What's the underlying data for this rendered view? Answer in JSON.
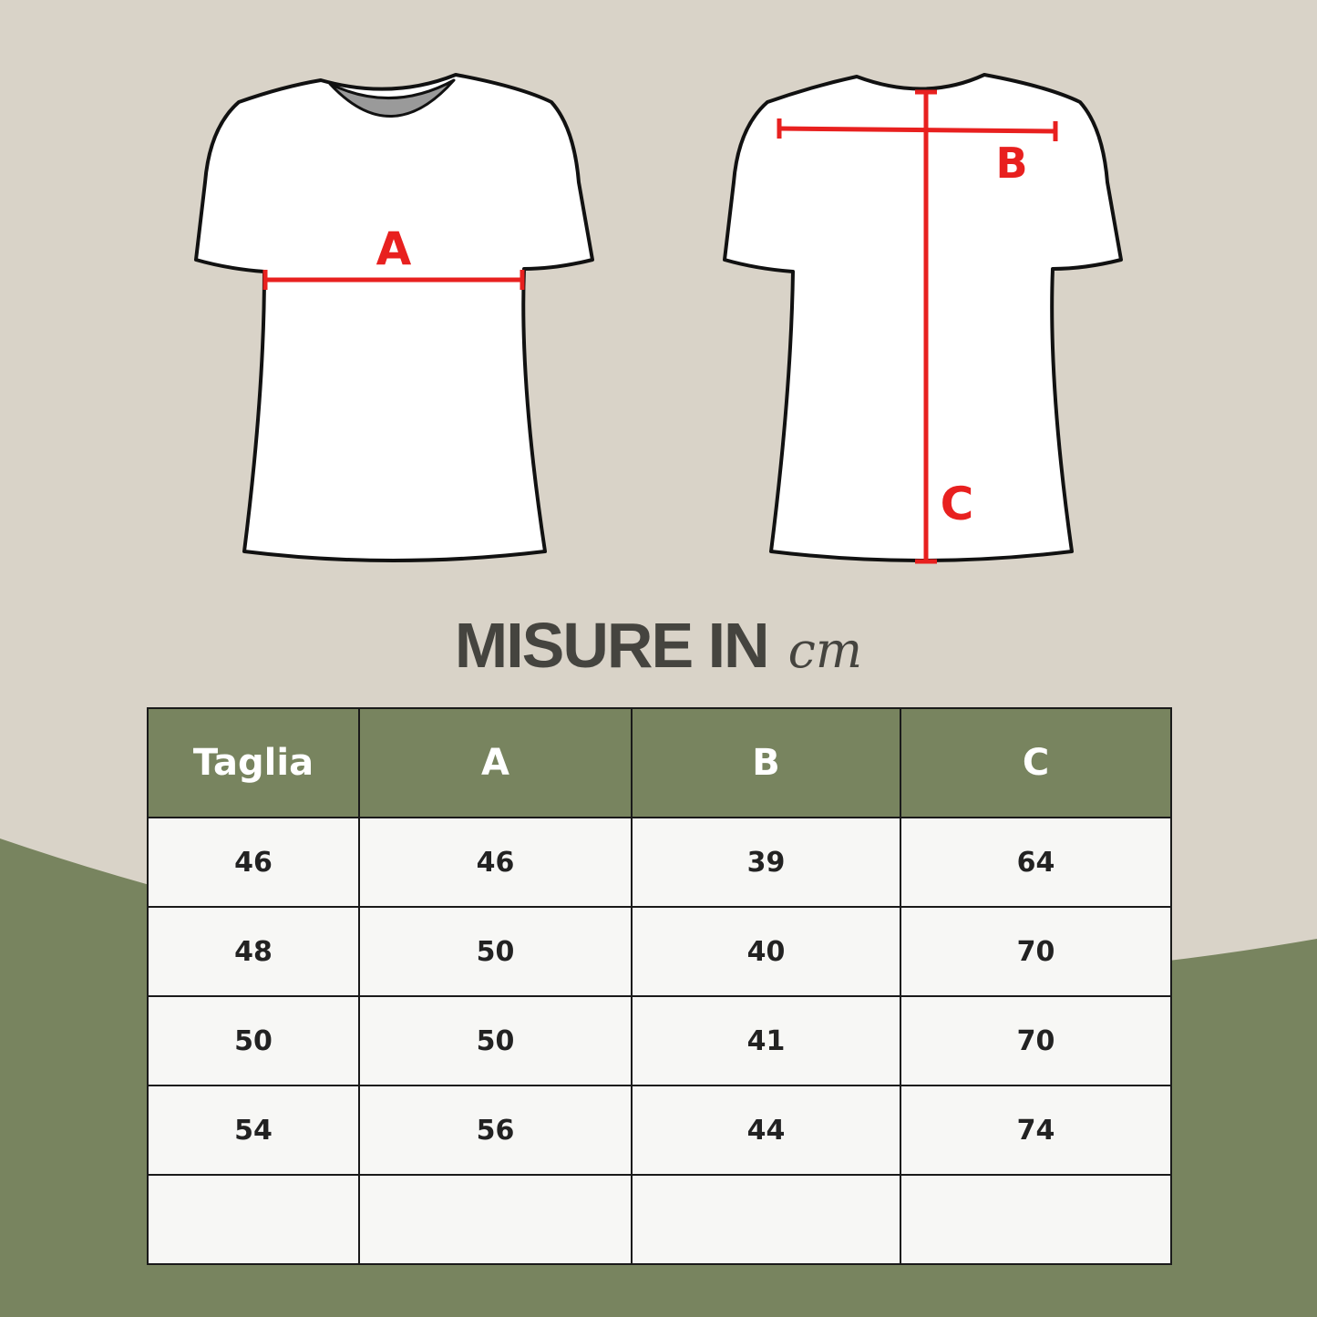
{
  "diagram": {
    "labels": {
      "a": "A",
      "b": "B",
      "c": "C"
    },
    "accent_color": "#e8201f"
  },
  "title": {
    "main": "MISURE IN",
    "unit": "cm"
  },
  "table": {
    "headers": [
      "Taglia",
      "A",
      "B",
      "C"
    ],
    "rows": [
      [
        "46",
        "46",
        "39",
        "64"
      ],
      [
        "48",
        "50",
        "40",
        "70"
      ],
      [
        "50",
        "50",
        "41",
        "70"
      ],
      [
        "54",
        "56",
        "44",
        "74"
      ],
      [
        "",
        "",
        "",
        ""
      ]
    ]
  },
  "colors": {
    "background": "#d9d3c8",
    "green": "#78845f"
  }
}
